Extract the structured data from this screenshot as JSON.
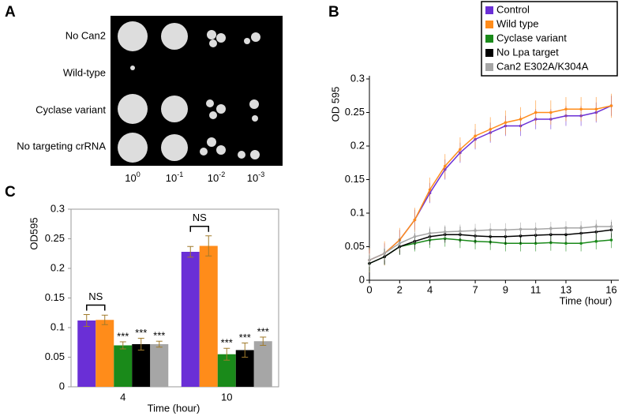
{
  "panels": {
    "A": {
      "letter": "A",
      "rows": [
        "No Can2",
        "Wild-type",
        "Cyclase variant",
        "No targeting crRNA"
      ],
      "columns": [
        {
          "base": "10",
          "exp": "0"
        },
        {
          "base": "10",
          "exp": "-1"
        },
        {
          "base": "10",
          "exp": "-2"
        },
        {
          "base": "10",
          "exp": "-3"
        }
      ]
    },
    "B": {
      "letter": "B"
    },
    "C": {
      "letter": "C"
    }
  },
  "chart_data": [
    {
      "type": "line",
      "y_label": "OD 595",
      "x_label": "Time (hour)",
      "x": [
        0,
        1,
        2,
        3,
        4,
        5,
        6,
        7,
        8,
        9,
        10,
        11,
        12,
        13,
        14,
        15,
        16
      ],
      "xlim": [
        0,
        16.5
      ],
      "xticks": [
        0,
        2,
        4,
        7,
        9,
        11,
        13,
        16
      ],
      "ylim": [
        0,
        0.3
      ],
      "yticks": [
        0,
        0.05,
        0.1,
        0.15,
        0.2,
        0.25,
        0.3
      ],
      "legend": "top-right",
      "series": [
        {
          "name": "Control",
          "color": "#6a2fd6",
          "error": 0.015,
          "values": [
            0.03,
            0.04,
            0.06,
            0.09,
            0.13,
            0.165,
            0.19,
            0.21,
            0.22,
            0.23,
            0.23,
            0.24,
            0.24,
            0.245,
            0.245,
            0.25,
            0.26
          ]
        },
        {
          "name": "Wild type",
          "color": "#ff8c1a",
          "error": 0.018,
          "values": [
            0.03,
            0.04,
            0.06,
            0.09,
            0.135,
            0.17,
            0.195,
            0.215,
            0.225,
            0.235,
            0.24,
            0.25,
            0.25,
            0.255,
            0.255,
            0.255,
            0.26
          ]
        },
        {
          "name": "Cyclase variant",
          "color": "#1a8a1a",
          "error": 0.012,
          "values": [
            0.025,
            0.035,
            0.05,
            0.055,
            0.06,
            0.062,
            0.06,
            0.058,
            0.057,
            0.055,
            0.055,
            0.055,
            0.056,
            0.055,
            0.055,
            0.058,
            0.06
          ]
        },
        {
          "name": "No Lpa target",
          "color": "#000000",
          "error": 0.012,
          "values": [
            0.025,
            0.035,
            0.05,
            0.058,
            0.065,
            0.068,
            0.068,
            0.066,
            0.065,
            0.065,
            0.066,
            0.067,
            0.068,
            0.068,
            0.07,
            0.072,
            0.075
          ]
        },
        {
          "name": "Can2 E302A/K304A",
          "color": "#a6a6a6",
          "error": 0.01,
          "values": [
            0.03,
            0.04,
            0.055,
            0.065,
            0.07,
            0.072,
            0.073,
            0.074,
            0.075,
            0.075,
            0.076,
            0.076,
            0.077,
            0.078,
            0.078,
            0.08,
            0.08
          ]
        }
      ]
    },
    {
      "type": "bar",
      "y_label": "OD595",
      "x_label": "Time (hour)",
      "categories": [
        "4",
        "10"
      ],
      "comparison_labels": [
        "NS",
        "NS"
      ],
      "ylim": [
        0,
        0.3
      ],
      "yticks": [
        0,
        0.05,
        0.1,
        0.15,
        0.2,
        0.25,
        0.3
      ],
      "series": [
        {
          "name": "Control",
          "color": "#6a2fd6",
          "values": [
            0.112,
            0.228
          ],
          "errors": [
            0.01,
            0.009
          ]
        },
        {
          "name": "Wild type",
          "color": "#ff8c1a",
          "values": [
            0.113,
            0.238
          ],
          "errors": [
            0.008,
            0.017
          ]
        },
        {
          "name": "Cyclase variant",
          "color": "#1a8a1a",
          "values": [
            0.07,
            0.055
          ],
          "errors": [
            0.006,
            0.01
          ],
          "significance": [
            "***",
            "***"
          ]
        },
        {
          "name": "No Lpa target",
          "color": "#000000",
          "values": [
            0.072,
            0.062
          ],
          "errors": [
            0.01,
            0.012
          ],
          "significance": [
            "***",
            "***"
          ]
        },
        {
          "name": "Can2 E302A/K304A",
          "color": "#a6a6a6",
          "values": [
            0.072,
            0.077
          ],
          "errors": [
            0.005,
            0.007
          ],
          "significance": [
            "***",
            "***"
          ]
        }
      ]
    }
  ]
}
